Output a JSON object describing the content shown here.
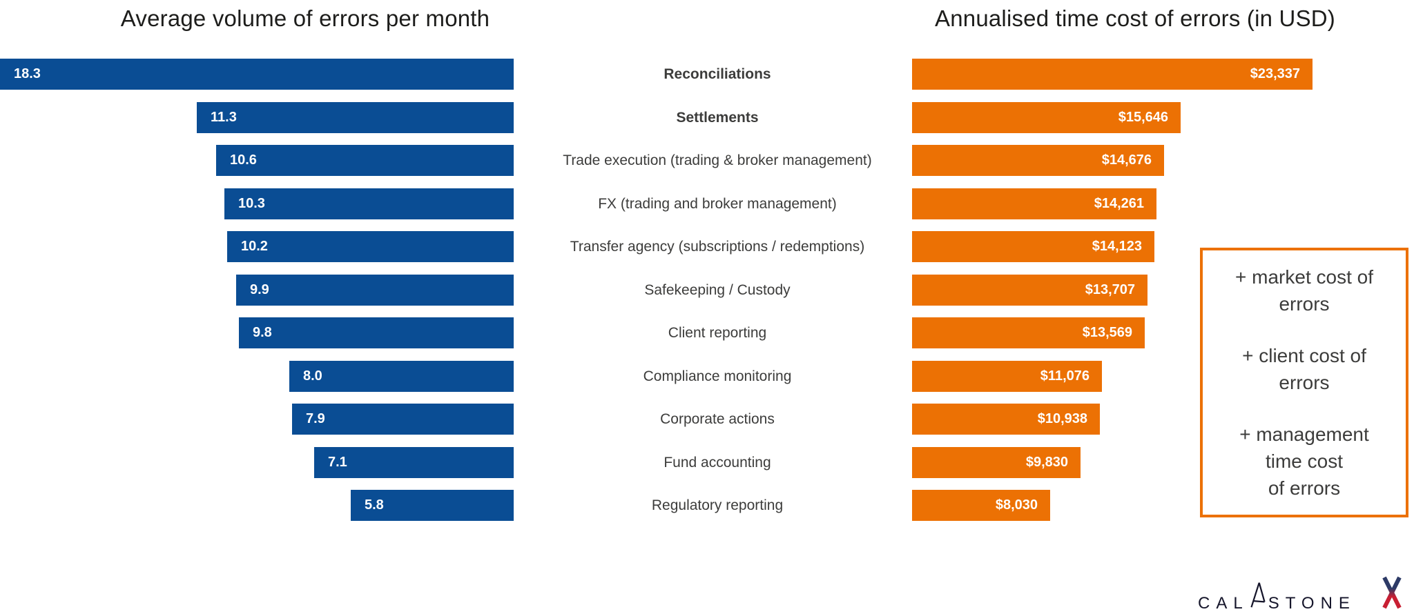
{
  "chart_data": [
    {
      "type": "bar",
      "orientation": "horizontal",
      "title": "Average volume of errors per month",
      "categories": [
        "Reconciliations",
        "Settlements",
        "Trade execution (trading & broker management)",
        "FX (trading and broker management)",
        "Transfer agency (subscriptions / redemptions)",
        "Safekeeping / Custody",
        "Client reporting",
        "Compliance monitoring",
        "Corporate actions",
        "Fund accounting",
        "Regulatory reporting"
      ],
      "values": [
        18.3,
        11.3,
        10.6,
        10.3,
        10.2,
        9.9,
        9.8,
        8.0,
        7.9,
        7.1,
        5.8
      ],
      "value_labels": [
        "18.3",
        "11.3",
        "10.6",
        "10.3",
        "10.2",
        "9.9",
        "9.8",
        "8.0",
        "7.9",
        "7.1",
        "5.8"
      ],
      "bold_categories": [
        "Reconciliations",
        "Settlements"
      ],
      "bar_color": "#0a4d94",
      "value_label_position": "inside-left",
      "bar_alignment": "right-aligned",
      "xlim": [
        0,
        18.3
      ],
      "grid": false,
      "sort_order": "descending"
    },
    {
      "type": "bar",
      "orientation": "horizontal",
      "title": "Annualised time cost of errors (in USD)",
      "categories": [
        "Reconciliations",
        "Settlements",
        "Trade execution (trading & broker management)",
        "FX (trading and broker management)",
        "Transfer agency (subscriptions / redemptions)",
        "Safekeeping / Custody",
        "Client reporting",
        "Compliance monitoring",
        "Corporate actions",
        "Fund accounting",
        "Regulatory reporting"
      ],
      "values": [
        23337,
        15646,
        14676,
        14261,
        14123,
        13707,
        13569,
        11076,
        10938,
        9830,
        8030
      ],
      "value_labels": [
        "$23,337",
        "$15,646",
        "$14,676",
        "$14,261",
        "$14,123",
        "$13,707",
        "$13,569",
        "$11,076",
        "$10,938",
        "$9,830",
        "$8,030"
      ],
      "bar_color": "#ec7104",
      "value_label_position": "inside-right",
      "bar_alignment": "left-aligned",
      "xlim": [
        0,
        23337
      ],
      "grid": false,
      "sort_order": "descending"
    }
  ],
  "info_box": {
    "items": [
      {
        "lines": [
          "+ market cost of",
          "errors"
        ]
      },
      {
        "lines": [
          "+ client cost of",
          "errors"
        ]
      },
      {
        "lines": [
          "+ management",
          "time cost",
          "of errors"
        ]
      }
    ]
  },
  "logo": {
    "brand": "CALASTONE",
    "prefix": "CAL",
    "suffix": "STONE"
  },
  "colors": {
    "volume_bar": "#0a4d94",
    "cost_bar": "#ec7104",
    "title_text": "#1d1d1b",
    "label_text": "#3c3c3b",
    "box_border": "#ec7104",
    "logo_text": "#16162b",
    "x_mark_top": "#2d3a66",
    "x_mark_bottom": "#c81f33"
  }
}
